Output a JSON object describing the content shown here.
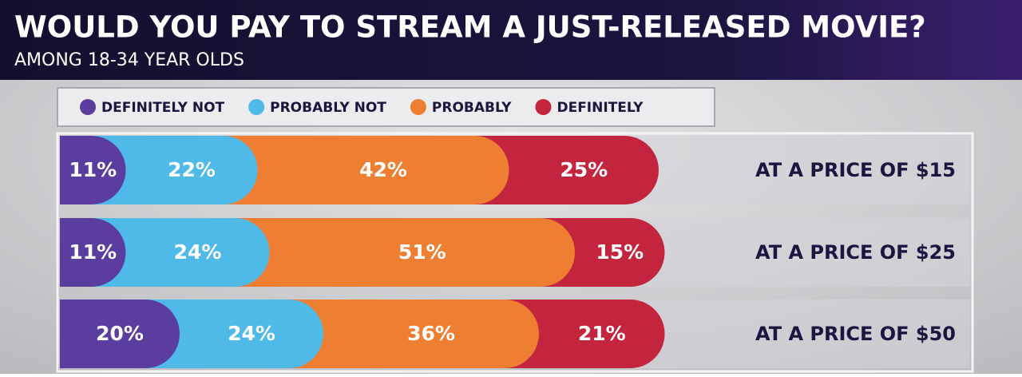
{
  "chart_data": {
    "type": "stacked-bar",
    "title": "WOULD YOU PAY TO STREAM A JUST-RELEASED MOVIE?",
    "subtitle": "AMONG 18-34 YEAR OLDS",
    "categories": [
      "AT A PRICE OF $15",
      "AT A PRICE OF $25",
      "AT A PRICE OF $50"
    ],
    "series": [
      {
        "name": "DEFINITELY NOT",
        "color": "#5a3d9e",
        "values": [
          11,
          11,
          20
        ],
        "value_labels": [
          "11%",
          "11%",
          "20%"
        ]
      },
      {
        "name": "PROBABLY NOT",
        "color": "#4fb9e8",
        "values": [
          22,
          24,
          24
        ],
        "value_labels": [
          "22%",
          "24%",
          "24%"
        ]
      },
      {
        "name": "PROBABLY",
        "color": "#ee7e32",
        "values": [
          42,
          51,
          36
        ],
        "value_labels": [
          "42%",
          "51%",
          "36%"
        ]
      },
      {
        "name": "DEFINITELY",
        "color": "#c3253f",
        "values": [
          25,
          15,
          21
        ],
        "value_labels": [
          "25%",
          "15%",
          "21%"
        ]
      }
    ]
  }
}
